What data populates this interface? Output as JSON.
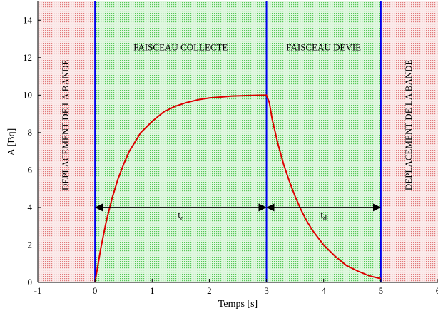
{
  "chart_data": {
    "type": "line",
    "xlabel": "Temps [s]",
    "ylabel": "A [Bq]",
    "xlim": [
      -1,
      6
    ],
    "ylim": [
      0,
      15
    ],
    "x_ticks": [
      "-1",
      "0",
      "1",
      "2",
      "3",
      "4",
      "5",
      "6"
    ],
    "y_ticks": [
      "0",
      "2",
      "4",
      "6",
      "8",
      "10",
      "12",
      "14"
    ],
    "grid": false,
    "regions": [
      {
        "label": "DEPLACEMENT DE LA BANDE",
        "x_start": -1,
        "x_end": 0,
        "color": "#e88a8a",
        "label_orientation": "vertical"
      },
      {
        "label": "FAISCEAU COLLECTE",
        "x_start": 0,
        "x_end": 3,
        "color": "#66d066",
        "label_orientation": "horizontal"
      },
      {
        "label": "FAISCEAU DEVIE",
        "x_start": 3,
        "x_end": 5,
        "color": "#66d066",
        "label_orientation": "horizontal"
      },
      {
        "label": "DEPLACEMENT DE LA BANDE",
        "x_start": 5,
        "x_end": 6,
        "color": "#e88a8a",
        "label_orientation": "vertical"
      }
    ],
    "boundaries": [
      0,
      3,
      5
    ],
    "boundary_color": "#0000ee",
    "series": [
      {
        "color": "#dd0000",
        "x": [
          0,
          0.1,
          0.2,
          0.3,
          0.4,
          0.5,
          0.6,
          0.7,
          0.8,
          0.9,
          1.0,
          1.2,
          1.4,
          1.6,
          1.8,
          2.0,
          2.2,
          2.4,
          2.6,
          2.8,
          3.0,
          3.05,
          3.1,
          3.2,
          3.3,
          3.4,
          3.5,
          3.6,
          3.7,
          3.8,
          3.9,
          4.0,
          4.2,
          4.4,
          4.6,
          4.8,
          5.0
        ],
        "y": [
          0,
          1.8,
          3.3,
          4.5,
          5.5,
          6.3,
          7.0,
          7.5,
          8.0,
          8.3,
          8.6,
          9.1,
          9.4,
          9.6,
          9.75,
          9.85,
          9.9,
          9.95,
          9.97,
          9.99,
          10.0,
          9.6,
          8.7,
          7.4,
          6.3,
          5.4,
          4.6,
          3.9,
          3.3,
          2.8,
          2.4,
          2.0,
          1.4,
          0.9,
          0.6,
          0.35,
          0.2
        ]
      }
    ],
    "annotations": [
      {
        "text": "t",
        "subscript": "c",
        "x_from": 0,
        "x_to": 3,
        "y": 4
      },
      {
        "text": "t",
        "subscript": "d",
        "x_from": 3,
        "x_to": 5,
        "y": 4
      }
    ]
  }
}
